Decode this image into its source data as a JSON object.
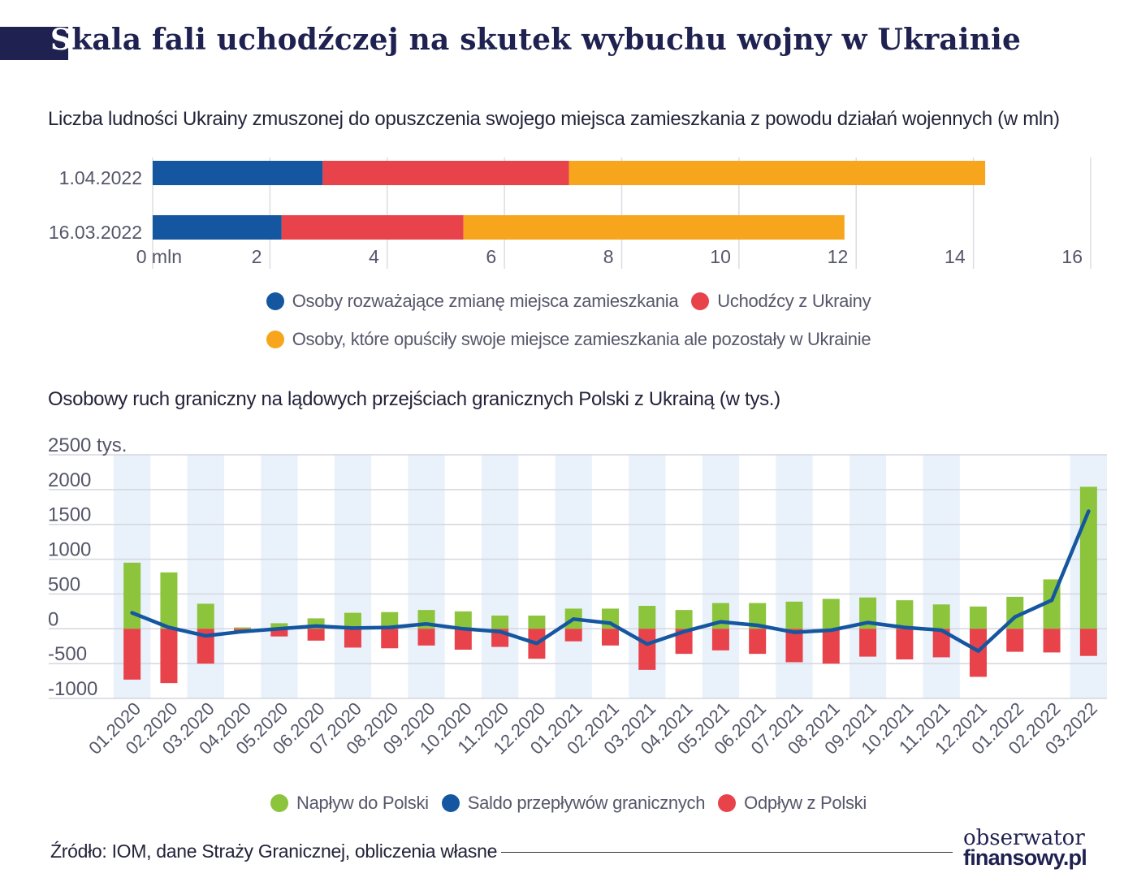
{
  "title": "Skala fali uchodźczej na skutek wybuchu wojny w Ukrainie",
  "colors": {
    "title_bar": "#1f2150",
    "blue": "#1457a0",
    "red": "#e8424b",
    "orange": "#f7a51d",
    "green": "#8cc43c",
    "stripe": "#e9f1fb"
  },
  "chart1": {
    "subtitle": "Liczba ludności Ukrainy zmuszonej do opuszczenia swojego miejsca zamieszkania z powodu działań wojennych (w mln)",
    "legend": [
      {
        "label": "Osoby rozważające zmianę miejsca zamieszkania",
        "color": "#1457a0"
      },
      {
        "label": "Uchodźcy z Ukrainy",
        "color": "#e8424b"
      },
      {
        "label": "Osoby, które opuściły swoje miejsce zamieszkania ale pozostały w Ukrainie",
        "color": "#f7a51d"
      }
    ]
  },
  "chart2": {
    "subtitle": "Osobowy ruch graniczny na lądowych przejściach granicznych Polski z Ukrainą  (w tys.)",
    "legend": [
      {
        "label": "Napływ do Polski",
        "color": "#8cc43c"
      },
      {
        "label": "Saldo przepływów granicznych",
        "color": "#1457a0"
      },
      {
        "label": "Odpływ z Polski",
        "color": "#e8424b"
      }
    ]
  },
  "source": "Źródło:  IOM, dane Straży Granicznej, obliczenia własne",
  "logo": {
    "line1": "obserwator",
    "line2": "finansowy.pl"
  },
  "chart_data": [
    {
      "type": "bar",
      "orientation": "horizontal",
      "stacked": true,
      "title": "Liczba ludności Ukrainy zmuszonej do opuszczenia swojego miejsca zamieszkania z powodu działań wojennych (w mln)",
      "categories": [
        "1.04.2022",
        "16.03.2022"
      ],
      "series": [
        {
          "name": "Osoby rozważające zmianę miejsca zamieszkania",
          "values": [
            2.9,
            2.2
          ]
        },
        {
          "name": "Uchodźcy z Ukrainy",
          "values": [
            4.2,
            3.1
          ]
        },
        {
          "name": "Osoby, które opuściły swoje miejsce zamieszkania ale pozostały w Ukrainie",
          "values": [
            7.1,
            6.5
          ]
        }
      ],
      "xlim": [
        0,
        16
      ],
      "xticks": [
        0,
        2,
        4,
        6,
        8,
        10,
        12,
        14,
        16
      ],
      "xtick_labels": [
        "0 mln",
        "2",
        "4",
        "6",
        "8",
        "10",
        "12",
        "14",
        "16"
      ]
    },
    {
      "type": "bar",
      "title": "Osobowy ruch graniczny na lądowych przejściach granicznych Polski z Ukrainą  (w tys.)",
      "categories": [
        "01.2020",
        "02.2020",
        "03.2020",
        "04.2020",
        "05.2020",
        "06.2020",
        "07.2020",
        "08.2020",
        "09.2020",
        "10.2020",
        "11.2020",
        "12.2020",
        "01.2021",
        "02.2021",
        "03.2021",
        "04.2021",
        "05.2021",
        "06.2021",
        "07.2021",
        "08.2021",
        "09.2021",
        "10.2021",
        "11.2021",
        "12.2021",
        "01.2022",
        "02.2022",
        "03.2022"
      ],
      "series": [
        {
          "name": "Napływ do Polski",
          "type": "bar",
          "values": [
            950,
            810,
            360,
            20,
            80,
            150,
            230,
            240,
            270,
            250,
            190,
            190,
            290,
            290,
            330,
            270,
            370,
            370,
            390,
            430,
            450,
            410,
            350,
            320,
            460,
            710,
            2040
          ]
        },
        {
          "name": "Odpływ z Polski",
          "type": "bar",
          "values": [
            -730,
            -780,
            -500,
            -40,
            -110,
            -170,
            -270,
            -280,
            -240,
            -300,
            -260,
            -430,
            -180,
            -240,
            -590,
            -360,
            -310,
            -360,
            -480,
            -500,
            -400,
            -440,
            -410,
            -690,
            -330,
            -340,
            -390
          ]
        },
        {
          "name": "Saldo przepływów granicznych",
          "type": "line",
          "values": [
            230,
            20,
            -100,
            -40,
            0,
            40,
            10,
            20,
            70,
            0,
            -40,
            -210,
            140,
            80,
            -220,
            -40,
            100,
            50,
            -50,
            -20,
            90,
            20,
            -20,
            -320,
            170,
            410,
            1690
          ]
        }
      ],
      "ylim": [
        -1000,
        2500
      ],
      "yticks": [
        2500,
        2000,
        1500,
        1000,
        500,
        0,
        -500,
        -1000
      ],
      "ytick_labels": [
        "2500 tys.",
        "2000",
        "1500",
        "1000",
        "500",
        "0",
        "-500",
        "-1000"
      ]
    }
  ]
}
